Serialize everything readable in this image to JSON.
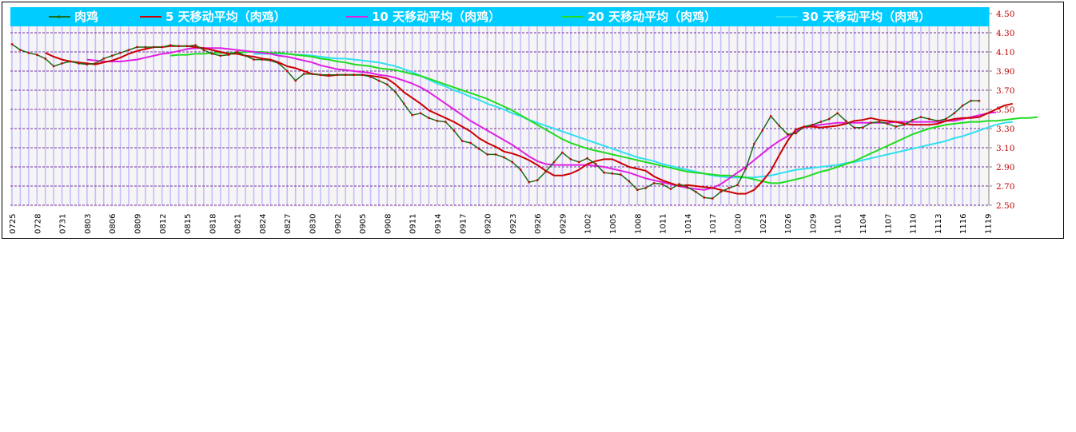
{
  "chart_data": {
    "type": "line",
    "ylim": [
      2.5,
      4.5
    ],
    "y_ticks": [
      "4.50",
      "4.30",
      "4.10",
      "3.90",
      "3.70",
      "3.50",
      "3.30",
      "3.10",
      "2.90",
      "2.70",
      "2.50"
    ],
    "x_tick_labels": [
      "0725",
      "0728",
      "0731",
      "0803",
      "0806",
      "0809",
      "0812",
      "0815",
      "0818",
      "0821",
      "0824",
      "0827",
      "0830",
      "0902",
      "0905",
      "0908",
      "0911",
      "0914",
      "0917",
      "0920",
      "0923",
      "0926",
      "0929",
      "1002",
      "1005",
      "1008",
      "1011",
      "1014",
      "1017",
      "1020",
      "1023",
      "1026",
      "1029",
      "1101",
      "1104",
      "1107",
      "1110",
      "1113",
      "1116",
      "1119"
    ],
    "legend_position": "top",
    "grid": true,
    "series": [
      {
        "name": "肉鸡",
        "color": "#1a6b1a",
        "marker_color": "#cc0000",
        "start_index": 0,
        "values": [
          4.18,
          4.12,
          4.09,
          4.07,
          4.03,
          3.95,
          3.98,
          4.0,
          3.98,
          3.97,
          3.98,
          4.03,
          4.06,
          4.09,
          4.12,
          4.15,
          4.15,
          4.15,
          4.15,
          4.17,
          4.16,
          4.16,
          4.17,
          4.12,
          4.08,
          4.06,
          4.07,
          4.1,
          4.06,
          4.02,
          4.02,
          4.01,
          3.98,
          3.9,
          3.8,
          3.87,
          3.87,
          3.86,
          3.86,
          3.86,
          3.86,
          3.86,
          3.86,
          3.84,
          3.8,
          3.76,
          3.68,
          3.56,
          3.44,
          3.46,
          3.41,
          3.38,
          3.37,
          3.28,
          3.17,
          3.15,
          3.09,
          3.03,
          3.03,
          3.0,
          2.95,
          2.87,
          2.74,
          2.76,
          2.85,
          2.95,
          3.05,
          2.98,
          2.95,
          2.99,
          2.93,
          2.84,
          2.83,
          2.82,
          2.75,
          2.66,
          2.68,
          2.73,
          2.72,
          2.67,
          2.72,
          2.69,
          2.64,
          2.58,
          2.57,
          2.64,
          2.68,
          2.71,
          2.88,
          3.14,
          3.28,
          3.43,
          3.33,
          3.24,
          3.25,
          3.32,
          3.34,
          3.37,
          3.4,
          3.46,
          3.38,
          3.31,
          3.31,
          3.36,
          3.37,
          3.35,
          3.32,
          3.34,
          3.39,
          3.42,
          3.4,
          3.38,
          3.4,
          3.46,
          3.54,
          3.59,
          3.59
        ]
      },
      {
        "name": "5 天移动平均（肉鸡）",
        "color": "#cc0000",
        "start_index": 4,
        "values": [
          4.09,
          4.05,
          4.02,
          4.0,
          3.99,
          3.98,
          3.97,
          3.99,
          4.01,
          4.04,
          4.08,
          4.11,
          4.13,
          4.15,
          4.15,
          4.16,
          4.16,
          4.16,
          4.15,
          4.14,
          4.12,
          4.1,
          4.08,
          4.08,
          4.06,
          4.05,
          4.03,
          4.02,
          3.99,
          3.95,
          3.93,
          3.9,
          3.87,
          3.86,
          3.85,
          3.86,
          3.86,
          3.86,
          3.86,
          3.85,
          3.84,
          3.82,
          3.76,
          3.68,
          3.62,
          3.56,
          3.49,
          3.45,
          3.41,
          3.37,
          3.32,
          3.27,
          3.2,
          3.15,
          3.11,
          3.06,
          3.04,
          3.01,
          2.97,
          2.92,
          2.86,
          2.81,
          2.81,
          2.83,
          2.87,
          2.93,
          2.96,
          2.98,
          2.98,
          2.94,
          2.9,
          2.88,
          2.86,
          2.8,
          2.76,
          2.73,
          2.7,
          2.71,
          2.7,
          2.69,
          2.68,
          2.66,
          2.64,
          2.62,
          2.62,
          2.66,
          2.75,
          2.86,
          3.02,
          3.17,
          3.29,
          3.32,
          3.32,
          3.31,
          3.32,
          3.33,
          3.35,
          3.38,
          3.39,
          3.41,
          3.39,
          3.38,
          3.37,
          3.35,
          3.34,
          3.34,
          3.34,
          3.35,
          3.38,
          3.4,
          3.41,
          3.41,
          3.42,
          3.46,
          3.5,
          3.54,
          3.56
        ]
      },
      {
        "name": "10 天移动平均（肉鸡）",
        "color": "#e020e0",
        "start_index": 9,
        "values": [
          4.02,
          4.01,
          4.0,
          4.0,
          4.0,
          4.01,
          4.02,
          4.04,
          4.06,
          4.08,
          4.09,
          4.11,
          4.13,
          4.14,
          4.14,
          4.14,
          4.14,
          4.13,
          4.12,
          4.11,
          4.1,
          4.09,
          4.08,
          4.06,
          4.05,
          4.03,
          4.01,
          3.99,
          3.96,
          3.94,
          3.92,
          3.91,
          3.9,
          3.89,
          3.88,
          3.86,
          3.85,
          3.83,
          3.8,
          3.77,
          3.73,
          3.68,
          3.62,
          3.56,
          3.5,
          3.44,
          3.38,
          3.33,
          3.28,
          3.23,
          3.18,
          3.13,
          3.07,
          3.01,
          2.96,
          2.93,
          2.92,
          2.92,
          2.92,
          2.92,
          2.92,
          2.91,
          2.9,
          2.88,
          2.86,
          2.84,
          2.81,
          2.78,
          2.76,
          2.74,
          2.72,
          2.7,
          2.68,
          2.67,
          2.66,
          2.68,
          2.72,
          2.78,
          2.84,
          2.9,
          2.97,
          3.04,
          3.11,
          3.17,
          3.22,
          3.27,
          3.31,
          3.33,
          3.34,
          3.35,
          3.36,
          3.36,
          3.36,
          3.36,
          3.36,
          3.36,
          3.36,
          3.37,
          3.37,
          3.37,
          3.37,
          3.37,
          3.37,
          3.38,
          3.38,
          3.4,
          3.42,
          3.44,
          3.46,
          3.47
        ]
      },
      {
        "name": "20 天移动平均（肉鸡）",
        "color": "#20dd20",
        "start_index": 19,
        "values": [
          4.06,
          4.07,
          4.07,
          4.08,
          4.08,
          4.09,
          4.09,
          4.09,
          4.09,
          4.1,
          4.1,
          4.1,
          4.09,
          4.09,
          4.08,
          4.07,
          4.06,
          4.05,
          4.03,
          4.02,
          4.0,
          3.99,
          3.97,
          3.96,
          3.95,
          3.93,
          3.92,
          3.91,
          3.89,
          3.87,
          3.85,
          3.82,
          3.79,
          3.76,
          3.73,
          3.7,
          3.67,
          3.64,
          3.61,
          3.57,
          3.53,
          3.49,
          3.44,
          3.39,
          3.34,
          3.29,
          3.24,
          3.19,
          3.15,
          3.12,
          3.09,
          3.07,
          3.05,
          3.03,
          3.01,
          2.99,
          2.97,
          2.95,
          2.93,
          2.91,
          2.89,
          2.87,
          2.85,
          2.84,
          2.83,
          2.82,
          2.81,
          2.81,
          2.8,
          2.79,
          2.77,
          2.75,
          2.73,
          2.73,
          2.75,
          2.77,
          2.79,
          2.82,
          2.85,
          2.87,
          2.9,
          2.93,
          2.96,
          3.0,
          3.04,
          3.08,
          3.12,
          3.16,
          3.2,
          3.24,
          3.27,
          3.3,
          3.32,
          3.34,
          3.35,
          3.36,
          3.37,
          3.37,
          3.38,
          3.38,
          3.39,
          3.4,
          3.41,
          3.41,
          3.42
        ]
      },
      {
        "name": "30 天移动平均（肉鸡）",
        "color": "#30e0f0",
        "start_index": 29,
        "values": [
          4.08,
          4.08,
          4.08,
          4.08,
          4.08,
          4.07,
          4.07,
          4.06,
          4.05,
          4.04,
          4.03,
          4.03,
          4.02,
          4.01,
          4.0,
          3.99,
          3.97,
          3.95,
          3.92,
          3.89,
          3.85,
          3.81,
          3.77,
          3.74,
          3.7,
          3.67,
          3.63,
          3.6,
          3.56,
          3.53,
          3.5,
          3.46,
          3.43,
          3.39,
          3.36,
          3.33,
          3.3,
          3.27,
          3.24,
          3.21,
          3.18,
          3.15,
          3.12,
          3.09,
          3.06,
          3.03,
          3.0,
          2.98,
          2.96,
          2.93,
          2.91,
          2.89,
          2.87,
          2.85,
          2.83,
          2.81,
          2.8,
          2.79,
          2.79,
          2.79,
          2.79,
          2.8,
          2.81,
          2.83,
          2.85,
          2.87,
          2.88,
          2.89,
          2.9,
          2.91,
          2.92,
          2.94,
          2.95,
          2.97,
          2.99,
          3.01,
          3.03,
          3.05,
          3.07,
          3.09,
          3.11,
          3.13,
          3.15,
          3.17,
          3.2,
          3.22,
          3.25,
          3.28,
          3.31,
          3.34,
          3.36,
          3.37
        ]
      }
    ]
  },
  "colors": {
    "legend_bg": "#00ccff",
    "grid_dash": "#7030a0",
    "stripe": "#b8b8ff",
    "tick_red": "#c00000"
  }
}
